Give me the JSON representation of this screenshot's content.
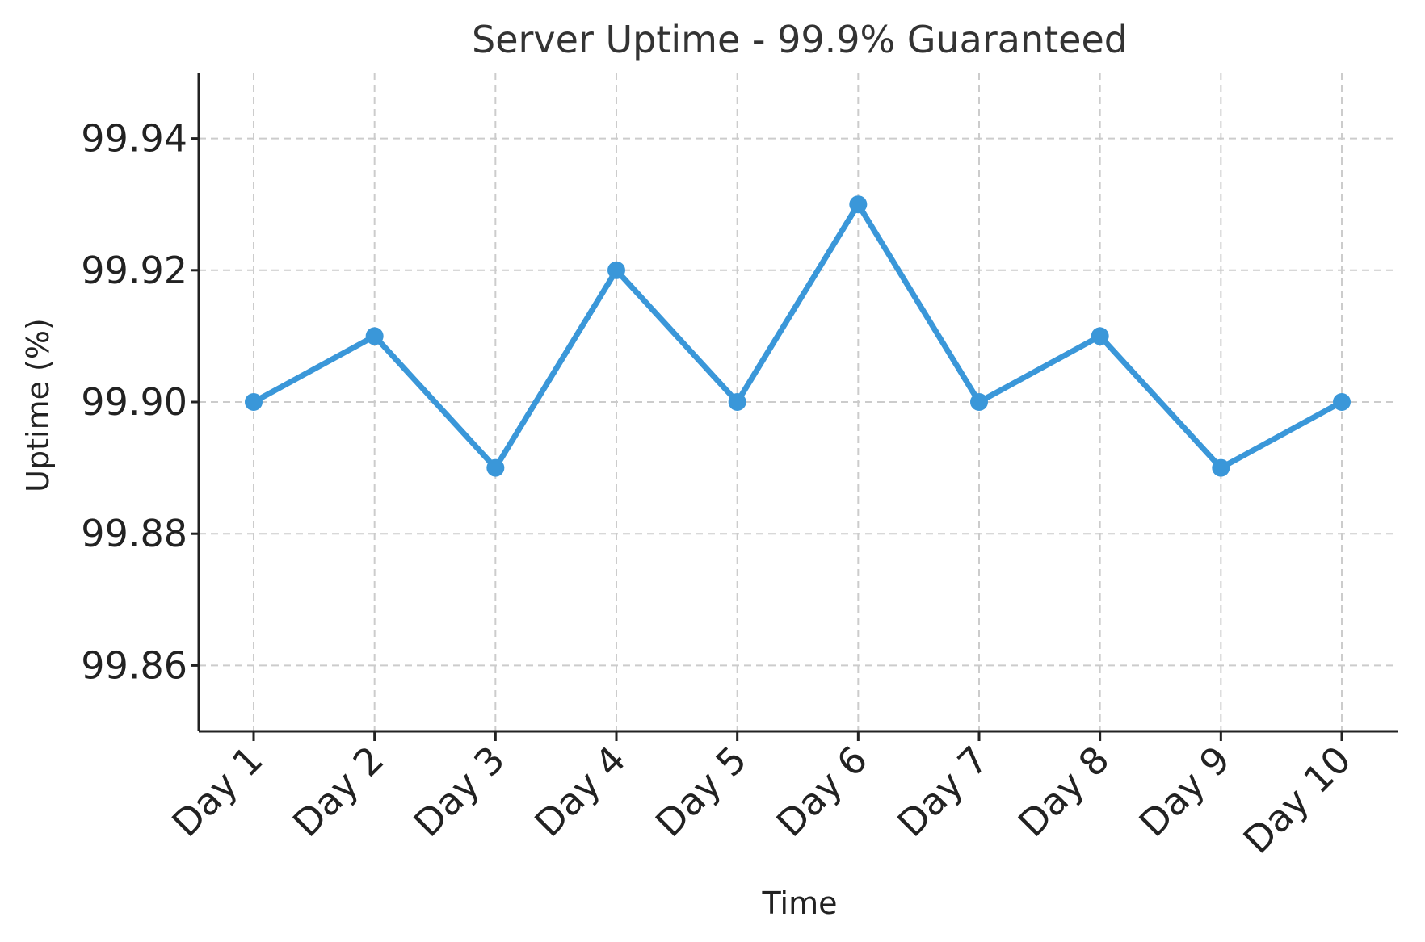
{
  "chart_data": {
    "type": "line",
    "title": "Server Uptime - 99.9% Guaranteed",
    "xlabel": "Time",
    "ylabel": "Uptime (%)",
    "categories": [
      "Day 1",
      "Day 2",
      "Day 3",
      "Day 4",
      "Day 5",
      "Day 6",
      "Day 7",
      "Day 8",
      "Day 9",
      "Day 10"
    ],
    "series": [
      {
        "values": [
          99.9,
          99.91,
          99.89,
          99.92,
          99.9,
          99.93,
          99.9,
          99.91,
          99.89,
          99.9
        ],
        "color": "#3a97d9",
        "marker": "circle"
      }
    ],
    "ylim": [
      99.85,
      99.95
    ],
    "yticks": [
      "99.86",
      "99.88",
      "99.90",
      "99.92",
      "99.94"
    ],
    "grid": true,
    "grid_style": "dashed",
    "legend": false,
    "x_tick_rotation": "45 degrees"
  }
}
